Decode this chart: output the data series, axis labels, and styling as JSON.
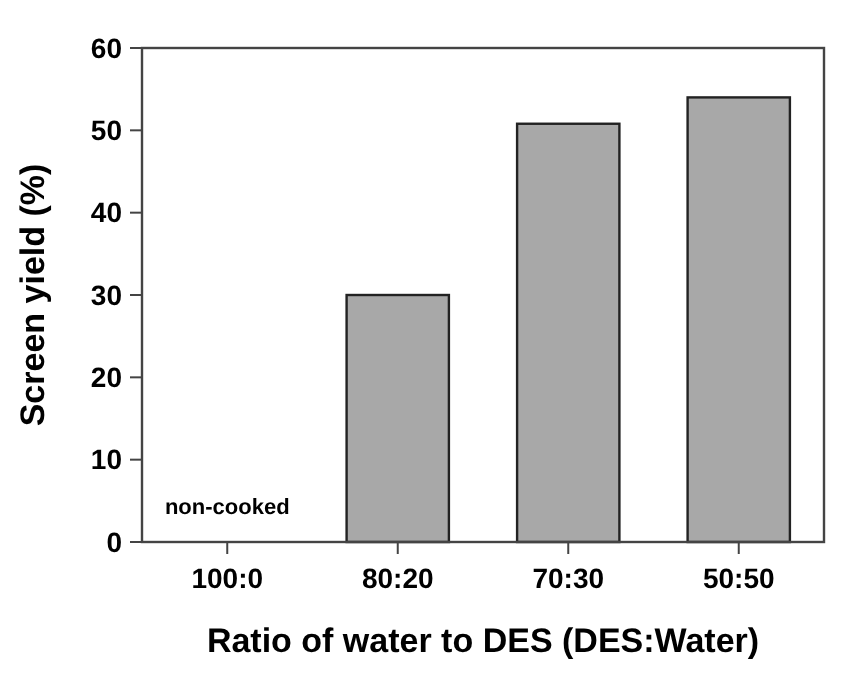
{
  "chart_data": {
    "type": "bar",
    "xlabel": "Ratio of water to DES (DES:Water)",
    "ylabel": "Screen yield (%)",
    "categories": [
      "100:0",
      "80:20",
      "70:30",
      "50:50"
    ],
    "values": [
      null,
      30,
      50.8,
      54
    ],
    "color": "#a8a8a8",
    "ylim": [
      0,
      60
    ],
    "yticks": [
      0,
      10,
      20,
      30,
      40,
      50,
      60
    ],
    "grid": false,
    "annotations": [
      "non-cooked"
    ]
  }
}
